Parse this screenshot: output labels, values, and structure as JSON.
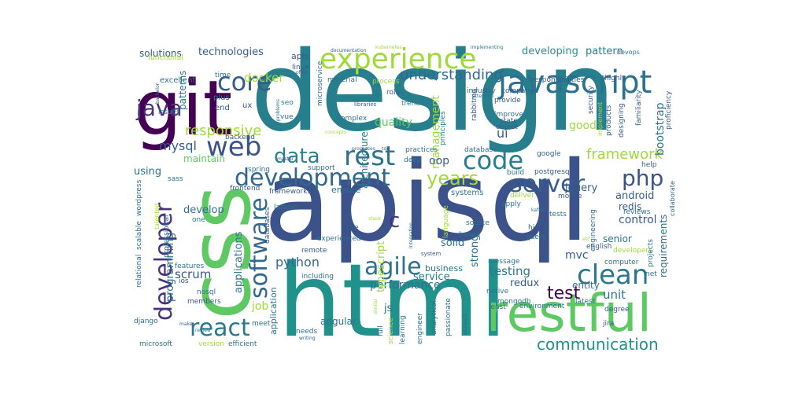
{
  "cloud": {
    "palette": {
      "purple": "#440154",
      "indigo": "#46327e",
      "blue": "#365c8d",
      "teal": "#277f8e",
      "green": "#1fa187",
      "lime": "#4ac16d",
      "yellowgreen": "#a0da39",
      "yellow": "#fde725"
    },
    "words": {
      "design": "design",
      "apisql": "apisql",
      "html": "html",
      "css": "css",
      "git": "git",
      "restful": "restful",
      "javascript": "javascript",
      "experience": "experience",
      "web": "web",
      "core": "core",
      "java": "java",
      "development": "development",
      "data": "data",
      "rest": "rest",
      "code": "code",
      "php": "php",
      "server": "server",
      "clean": "clean",
      "agile": "agile",
      "react": "react",
      "software": "software",
      "developer": "developer",
      "test": "test",
      "communication": "communication",
      "years": "years",
      "responsive": "responsive",
      "framework": "framework",
      "understanding": "understanding",
      "technologies": "technologies",
      "solutions": "solutions",
      "developing": "developing",
      "pattern": "pattern",
      "mysql": "mysql",
      "docker": "docker",
      "management": "management",
      "quality": "quality",
      "ui": "ui",
      "oop": "oop",
      "c": "c",
      "python": "python",
      "scrum": "scrum",
      "testing": "testing",
      "performance": "performance",
      "unit": "unit",
      "control": "control",
      "redis": "redis",
      "android": "android",
      "jquery": "jquery",
      "using": "using",
      "maintain": "maintain",
      "develop": "develop",
      "applications": "applications",
      "programming": "programming",
      "architecture": "architecture",
      "strong": "strong",
      "typescript": "typescript",
      "job": "job",
      "angular": "angular",
      "js": "js",
      "service": "service",
      "business": "business",
      "solid": "solid",
      "mvc": "mvc",
      "senior": "senior",
      "entity": "entity",
      "redux": "redux",
      "requirements": "requirements",
      "good": "good",
      "bootstrap": "bootstrap",
      "apis": "apis",
      "linux": "linux",
      "patterns": "patterns",
      "excellent": "excellent",
      "plus": "plus",
      "end": "end",
      "issues": "issues",
      "time": "time",
      "functional": "functional",
      "ux": "ux",
      "seo": "seo",
      "vue": "vue",
      "backend": "backend",
      "microservice": "microservice",
      "material": "material",
      "process": "process",
      "role": "role",
      "trends": "trends",
      "complex": "complex",
      "industry": "industry",
      "rabbitmq": "rabbitmq",
      "principles": "principles",
      "improve": "improve",
      "state": "state",
      "object": "object",
      "company": "company",
      "responsibilities": "responsibilities",
      "highly": "highly",
      "provide": "provide",
      "security": "security",
      "implement": "implement",
      "products": "products",
      "designing": "designing",
      "familiarity": "familiarity",
      "proficiency": "proficiency",
      "devops": "devops",
      "google": "google",
      "database": "database",
      "practices": "practices",
      "deep": "deep",
      "build": "build",
      "postgresql": "postgresql",
      "help": "help",
      "collaborate": "collaborate",
      "spring": "spring",
      "sass": "sass",
      "frontend": "frontend",
      "frameworks": "frameworks",
      "support": "support",
      "ensure": "ensure",
      "systems": "systems",
      "deliver": "deliver",
      "mobile": "mobile",
      "apply": "apply",
      "reviews": "reviews",
      "tests": "tests",
      "engineering": "engineering",
      "wordpress": "wordpress",
      "one": "one",
      "laravel": "laravel",
      "databases": "databases",
      "write": "write",
      "experienced": "experienced",
      "remote": "remote",
      "source": "source",
      "based": "based",
      "language": "language",
      "high": "high",
      "query": "query",
      "computer": "computer",
      "developers": "developers",
      "projects": "projects",
      "english": "english",
      "message": "message",
      "native": "native",
      "mongodb": "mongodb",
      "latest": "latest",
      "degree": "degree",
      "least": "least",
      "environment": "environment",
      "net": "net",
      "jira": "jira",
      "etc": "etc",
      "features": "features",
      "ios": "ios",
      "nosql": "nosql",
      "members": "members",
      "django": "django",
      "make": "make",
      "microsoft": "microsoft",
      "version": "version",
      "efficient": "efficient",
      "meet": "meet",
      "needs": "needs",
      "writing": "writing",
      "including": "including",
      "full": "full",
      "science": "science",
      "learning": "learning",
      "engineer": "engineer",
      "analytical": "analytical",
      "passionate": "passionate",
      "webpack": "webpack",
      "relational": "relational",
      "scalable": "scalable",
      "professional": "professional",
      "talented": "talented",
      "documentation": "documentation",
      "libraries": "libraries",
      "implementing": "implementing",
      "bachelor": "bachelor",
      "problems": "problems",
      "attention": "attention",
      "offer": "offer",
      "concepts": "concepts",
      "master": "master",
      "tdd": "tdd",
      "processes": "processes",
      "stack": "stack",
      "system": "system",
      "similar": "similar",
      "application": "application",
      "kafka": "kafka",
      "review": "review",
      "integration": "integration",
      "kubernetes": "kubernetes"
    }
  }
}
